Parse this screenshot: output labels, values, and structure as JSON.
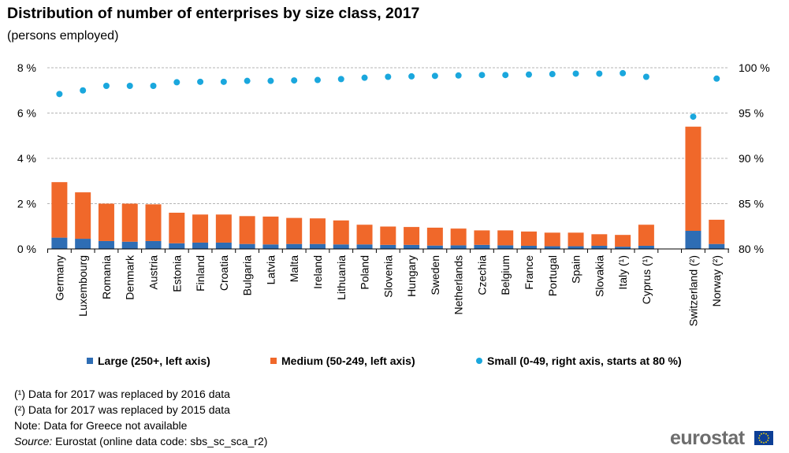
{
  "title": "Distribution of number of enterprises by size class, 2017",
  "subtitle": "(persons employed)",
  "legend": {
    "large": "Large (250+, left axis)",
    "medium": "Medium (50-249, left axis)",
    "small": "Small (0-49, right axis, starts at 80 %)"
  },
  "notes": [
    "(¹) Data for 2017 was replaced by 2016 data",
    "(²) Data for 2017 was replaced by 2015 data",
    "Note: Data for Greece not available"
  ],
  "source": {
    "label": "Source:",
    "text": "Eurostat (online data code: sbs_sc_sca_r2)"
  },
  "logo_text": "eurostat",
  "colors": {
    "large": "#2e6db4",
    "medium": "#f0682a",
    "small": "#1aa7dd",
    "grid": "#b4b4b4",
    "flag": "#0d3f96",
    "flag_stars": "#ffdd00"
  },
  "icons": {
    "logo": "eu-flag-icon"
  },
  "chart_data": {
    "type": "bar",
    "stacked": true,
    "categories": [
      "Germany",
      "Luxembourg",
      "Romania",
      "Denmark",
      "Austria",
      "Estonia",
      "Finland",
      "Croatia",
      "Bulgaria",
      "Latvia",
      "Malta",
      "Ireland",
      "Lithuania",
      "Poland",
      "Slovenia",
      "Hungary",
      "Sweden",
      "Netherlands",
      "Czechia",
      "Belgium",
      "France",
      "Portugal",
      "Spain",
      "Slovakia",
      "Italy (¹)",
      "Cyprus (¹)",
      "",
      "Switzerland (²)",
      "Norway (²)"
    ],
    "series": [
      {
        "name": "Large (250+, left axis)",
        "axis": "left",
        "values": [
          0.5,
          0.45,
          0.35,
          0.32,
          0.35,
          0.25,
          0.28,
          0.28,
          0.22,
          0.2,
          0.22,
          0.22,
          0.2,
          0.2,
          0.18,
          0.18,
          0.15,
          0.16,
          0.18,
          0.16,
          0.14,
          0.12,
          0.12,
          0.14,
          0.1,
          0.14,
          null,
          0.8,
          0.22
        ]
      },
      {
        "name": "Medium (50-249, left axis)",
        "axis": "left",
        "values": [
          2.45,
          2.05,
          1.65,
          1.68,
          1.62,
          1.35,
          1.24,
          1.24,
          1.23,
          1.23,
          1.15,
          1.13,
          1.06,
          0.87,
          0.81,
          0.79,
          0.79,
          0.74,
          0.64,
          0.66,
          0.63,
          0.6,
          0.6,
          0.51,
          0.52,
          0.93,
          null,
          4.6,
          1.07
        ]
      },
      {
        "name": "Small (0-49, right axis, starts at 80 %)",
        "axis": "right",
        "type": "scatter",
        "values": [
          97.1,
          97.5,
          98.0,
          98.0,
          98.0,
          98.4,
          98.45,
          98.45,
          98.55,
          98.55,
          98.6,
          98.65,
          98.75,
          98.9,
          99.0,
          99.05,
          99.1,
          99.15,
          99.2,
          99.2,
          99.25,
          99.3,
          99.35,
          99.35,
          99.4,
          99.0,
          null,
          94.6,
          98.8
        ]
      }
    ],
    "left_axis": {
      "ylim": [
        0,
        8
      ],
      "ticks": [
        "0 %",
        "2 %",
        "4 %",
        "6 %",
        "8 %"
      ],
      "tick_values": [
        0,
        2,
        4,
        6,
        8
      ]
    },
    "right_axis": {
      "ylim": [
        80,
        100
      ],
      "ticks": [
        "80 %",
        "85 %",
        "90 %",
        "95 %",
        "100 %"
      ],
      "tick_values": [
        80,
        85,
        90,
        95,
        100
      ]
    },
    "grid": true,
    "legend_position": "bottom"
  }
}
